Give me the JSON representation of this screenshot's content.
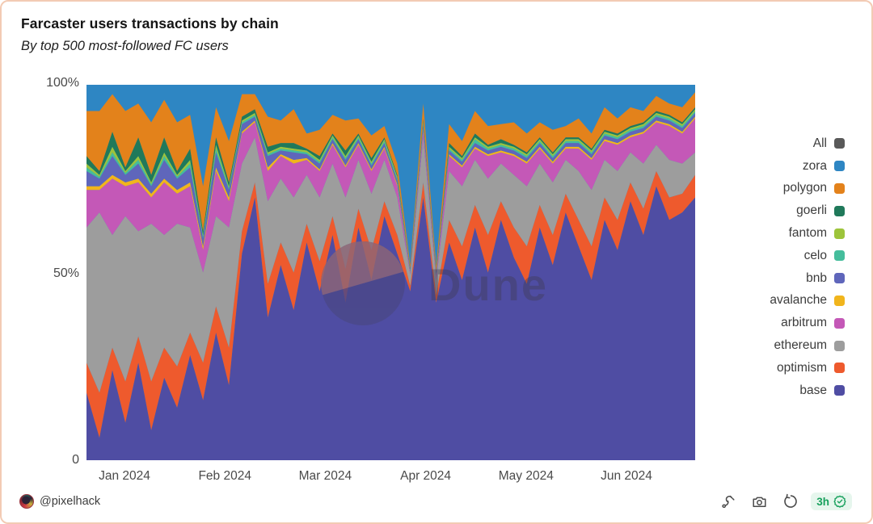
{
  "header": {
    "title": "Farcaster users transactions by chain",
    "subtitle": "By top 500 most-followed FC users"
  },
  "y_axis": {
    "labels": [
      "100%",
      "50%",
      "0"
    ]
  },
  "x_axis": {
    "labels": [
      "Jan 2024",
      "Feb 2024",
      "Mar 2024",
      "Apr 2024",
      "May 2024",
      "Jun 2024"
    ]
  },
  "legend": {
    "items": [
      {
        "label": "All",
        "color": "#595959"
      },
      {
        "label": "zora",
        "color": "#2e86c3"
      },
      {
        "label": "polygon",
        "color": "#e3821b"
      },
      {
        "label": "goerli",
        "color": "#20795a"
      },
      {
        "label": "fantom",
        "color": "#9dc43b"
      },
      {
        "label": "celo",
        "color": "#45bd9c"
      },
      {
        "label": "bnb",
        "color": "#5f66bb"
      },
      {
        "label": "avalanche",
        "color": "#f1b51c"
      },
      {
        "label": "arbitrum",
        "color": "#c458b7"
      },
      {
        "label": "ethereum",
        "color": "#9d9d9d"
      },
      {
        "label": "optimism",
        "color": "#ee5a2d"
      },
      {
        "label": "base",
        "color": "#4f4da3"
      }
    ]
  },
  "watermark": {
    "text": "Dune"
  },
  "footer": {
    "author": "@pixelhack",
    "icon_names": [
      "plug-icon",
      "camera-icon",
      "refresh-icon",
      "verified-check-icon"
    ],
    "refresh_badge": {
      "text": "3h",
      "color": "#17a05c",
      "bg": "#e6f6ed"
    }
  },
  "chart_data": {
    "type": "area",
    "stacked": true,
    "normalized_percent": true,
    "title": "Farcaster users transactions by chain",
    "subtitle": "By top 500 most-followed FC users",
    "x_range": [
      "2024-01-01",
      "2024-06-24"
    ],
    "x_tick_labels": [
      "Jan 2024",
      "Feb 2024",
      "Mar 2024",
      "Apr 2024",
      "May 2024",
      "Jun 2024"
    ],
    "ylim": [
      0,
      100
    ],
    "y_tick_labels": [
      "0",
      "50%",
      "100%"
    ],
    "grid": false,
    "legend_position": "right",
    "stack_order_bottom_to_top": [
      "base",
      "optimism",
      "ethereum",
      "arbitrum",
      "avalanche",
      "bnb",
      "celo",
      "fantom",
      "goerli",
      "polygon",
      "zora"
    ],
    "series": [
      {
        "name": "base",
        "color": "#4f4da3",
        "values": [
          18,
          6,
          24,
          10,
          26,
          8,
          22,
          14,
          28,
          16,
          34,
          20,
          55,
          70,
          38,
          52,
          40,
          58,
          45,
          60,
          42,
          62,
          48,
          65,
          55,
          45,
          70,
          42,
          58,
          48,
          62,
          50,
          64,
          54,
          47,
          62,
          52,
          66,
          57,
          48,
          64,
          56,
          69,
          60,
          73,
          64,
          66,
          70
        ]
      },
      {
        "name": "optimism",
        "color": "#ee5a2d",
        "values": [
          8,
          12,
          6,
          11,
          7,
          13,
          8,
          11,
          6,
          10,
          7,
          10,
          6,
          4,
          9,
          6,
          10,
          5,
          8,
          5,
          9,
          5,
          8,
          4,
          5,
          1.5,
          4,
          2,
          6,
          9,
          6,
          10,
          5,
          8,
          10,
          6,
          8,
          5,
          7,
          9,
          6,
          8,
          5,
          7,
          4,
          6,
          5,
          6
        ]
      },
      {
        "name": "ethereum",
        "color": "#9d9d9d",
        "values": [
          36,
          48,
          30,
          44,
          28,
          42,
          30,
          38,
          28,
          24,
          24,
          32,
          18,
          12,
          22,
          17,
          20,
          13,
          17,
          14,
          19,
          13,
          15,
          11,
          10,
          3,
          12,
          4,
          13,
          16,
          12,
          15,
          10,
          14,
          16,
          11,
          14,
          9,
          13,
          15,
          10,
          13,
          8,
          12,
          7,
          10,
          8,
          6
        ]
      },
      {
        "name": "arbitrum",
        "color": "#c458b7",
        "values": [
          10,
          6,
          15,
          8,
          13,
          7,
          14,
          8,
          11,
          6,
          12,
          7,
          8,
          4,
          8,
          6,
          9,
          4,
          7,
          5,
          8,
          4,
          6,
          3,
          3,
          0.5,
          2,
          1,
          4,
          5,
          3,
          6,
          3,
          5,
          6,
          4,
          5,
          3,
          6,
          8,
          5,
          7,
          4,
          8,
          6,
          9,
          8,
          9
        ]
      },
      {
        "name": "avalanche",
        "color": "#f1b51c",
        "values": [
          1,
          1,
          1,
          1,
          1,
          1,
          1,
          1,
          1,
          1,
          1,
          1,
          0.5,
          0.5,
          1,
          0.5,
          1,
          0.5,
          0.5,
          0.5,
          0.5,
          0.5,
          0.5,
          0.5,
          0.5,
          0.2,
          0.5,
          0.2,
          0.5,
          0.5,
          0.5,
          0.5,
          0.5,
          0.5,
          0.5,
          0.5,
          0.5,
          0.5,
          0.5,
          0.5,
          0.5,
          0.5,
          0.5,
          0.5,
          0.5,
          0.5,
          0.5,
          0.5
        ]
      },
      {
        "name": "bnb",
        "color": "#5f66bb",
        "values": [
          4,
          2,
          5,
          2,
          4,
          2,
          5,
          3,
          4,
          2,
          4,
          2,
          2,
          1,
          3,
          1,
          2,
          1,
          1.5,
          1,
          1.5,
          1,
          1,
          1,
          1,
          0.3,
          1,
          0.3,
          1,
          1,
          1,
          1,
          1,
          1,
          1,
          1,
          1,
          1,
          1,
          1,
          1,
          1,
          1,
          1,
          1,
          1,
          1,
          1
        ]
      },
      {
        "name": "celo",
        "color": "#45bd9c",
        "values": [
          1,
          0.5,
          1,
          0.5,
          1,
          0.5,
          1,
          0.5,
          1,
          0.5,
          1,
          0.5,
          0.5,
          0.5,
          0.5,
          0.5,
          0.5,
          0.5,
          0.5,
          0.5,
          0.5,
          0.5,
          0.5,
          0.5,
          0.5,
          0.2,
          0.5,
          0.2,
          0.5,
          0.5,
          1,
          0.5,
          0.5,
          0.5,
          0.5,
          0.5,
          0.5,
          0.5,
          0.5,
          0.5,
          0.5,
          0.5,
          0.5,
          0.5,
          0.5,
          0.5,
          0.5,
          0.5
        ]
      },
      {
        "name": "fantom",
        "color": "#9dc43b",
        "values": [
          1,
          0.5,
          1.5,
          0.5,
          1,
          0.5,
          1,
          0.5,
          1,
          0.5,
          1,
          0.5,
          0.5,
          0.5,
          0.5,
          0.5,
          0.5,
          0.5,
          0.5,
          0.5,
          0.5,
          0.5,
          0.5,
          0.5,
          0.5,
          0.2,
          0.5,
          0.2,
          0.5,
          0.5,
          0.5,
          0.5,
          0.5,
          0.5,
          0.5,
          0.5,
          0.5,
          0.5,
          0.5,
          0.5,
          0.5,
          0.5,
          0.5,
          0.5,
          0.5,
          0.5,
          0.5,
          0.5
        ]
      },
      {
        "name": "goerli",
        "color": "#20795a",
        "values": [
          2,
          1,
          4,
          1,
          5,
          2,
          4,
          1,
          3,
          1,
          2,
          1,
          1,
          1,
          1.5,
          1,
          1.5,
          0.5,
          1,
          0.5,
          1.5,
          0.5,
          1,
          0.5,
          0.5,
          0.2,
          0.5,
          0.3,
          1,
          0.5,
          1,
          0.5,
          1,
          0.5,
          0.5,
          0.5,
          0.5,
          0.5,
          0.5,
          0.5,
          0.5,
          0.5,
          0.5,
          0.5,
          0.5,
          0.5,
          0.5,
          0.5
        ]
      },
      {
        "name": "polygon",
        "color": "#e3821b",
        "values": [
          12,
          16,
          10,
          15,
          9,
          14,
          10,
          13,
          9,
          12,
          8,
          11,
          6,
          4,
          8,
          6,
          9,
          4,
          7,
          5,
          8,
          4,
          6,
          3,
          3,
          1,
          4,
          1.5,
          5,
          4,
          6,
          5,
          4,
          6,
          5,
          4,
          6,
          3,
          5,
          4,
          6,
          4,
          5,
          3,
          4,
          3,
          4,
          4
        ]
      },
      {
        "name": "zora",
        "color": "#2e86c3",
        "values": [
          7,
          7,
          2.5,
          7,
          5,
          10,
          4,
          10,
          8,
          27,
          6,
          15,
          2.5,
          2.5,
          8.5,
          9.5,
          6.5,
          13,
          12,
          8,
          9.5,
          9,
          13.5,
          11,
          21,
          47.9,
          5,
          48.3,
          10.5,
          15,
          7,
          11,
          10.5,
          10,
          13,
          10,
          12,
          11,
          9,
          13,
          6,
          9,
          6,
          7,
          3,
          5,
          6,
          2
        ]
      }
    ]
  }
}
